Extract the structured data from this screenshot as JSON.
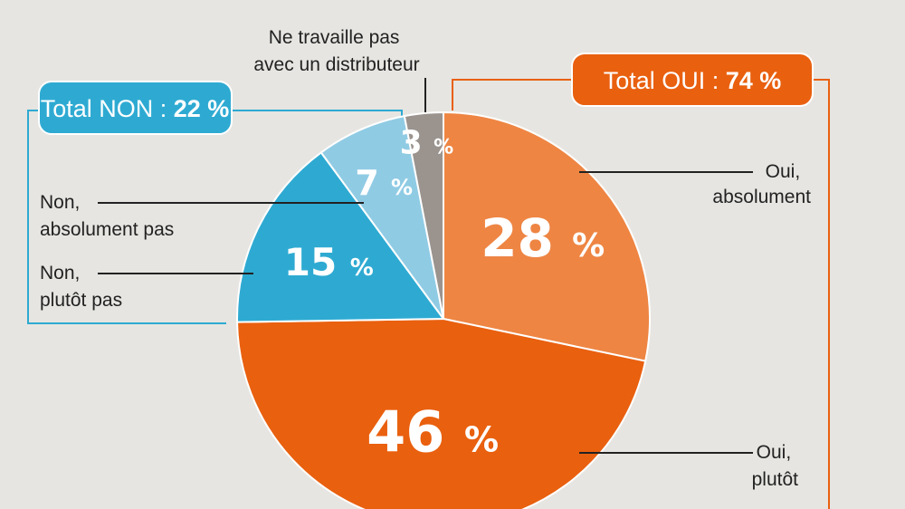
{
  "chart_data": {
    "type": "pie",
    "slices": [
      {
        "label": "Oui, absolument",
        "value": 28,
        "display": "28",
        "color": "#ee8543"
      },
      {
        "label": "Oui, plutôt",
        "value": 46,
        "display": "46",
        "color": "#e9600f"
      },
      {
        "label": "Non, plutôt pas",
        "value": 15,
        "display": "15",
        "color": "#2eaad2"
      },
      {
        "label": "Non, absolument pas",
        "value": 7,
        "display": "7",
        "color": "#90cbe4"
      },
      {
        "label": "Ne travaille pas avec un distributeur",
        "value": 3,
        "display": "3",
        "color": "#9a938e"
      }
    ],
    "pct_symbol": "%",
    "callouts": {
      "oui_absolument": [
        "Oui,",
        "absolument"
      ],
      "oui_plutot": [
        "Oui,",
        "plutôt"
      ],
      "non_absolument_pas": [
        "Non,",
        "absolument pas"
      ],
      "non_plutot_pas": [
        "Non,",
        "plutôt pas"
      ],
      "ne_travaille_pas": [
        "Ne travaille pas",
        "avec un distributeur"
      ]
    },
    "totals": {
      "oui": {
        "label": "Total OUI : ",
        "value": "74 %",
        "color": "#e9600f"
      },
      "non": {
        "label": "Total NON : ",
        "value": "22 %",
        "color": "#2eaad2"
      }
    }
  }
}
